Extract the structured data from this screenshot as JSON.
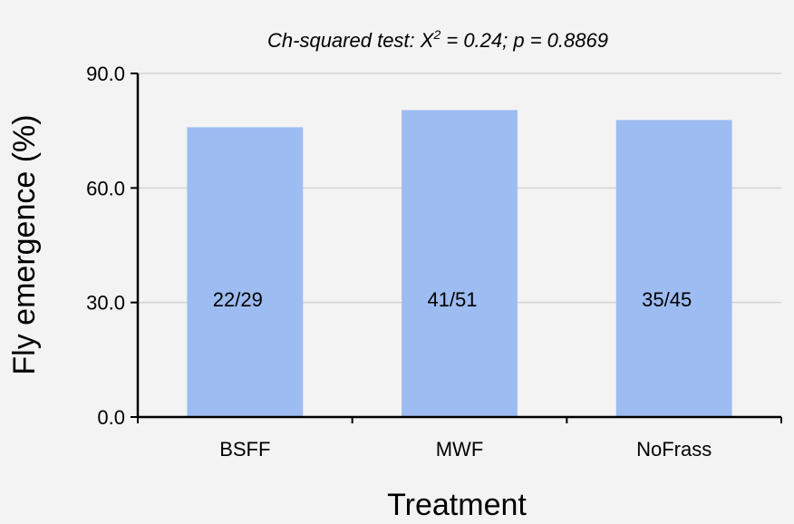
{
  "chart_data": {
    "type": "bar",
    "title_prefix": "Ch-squared test: X",
    "title_superscript": "2",
    "title_suffix": " = 0.24; p = 0.8869",
    "xlabel": "Treatment",
    "ylabel": "Fly emergence (%)",
    "ylim": [
      0,
      90
    ],
    "yticks": [
      0,
      30,
      60,
      90
    ],
    "ytick_labels": [
      "0.0",
      "30.0",
      "60.0",
      "90.0"
    ],
    "grid": true,
    "categories": [
      "BSFF",
      "MWF",
      "NoFrass"
    ],
    "values": [
      75.9,
      80.4,
      77.8
    ],
    "data_labels": [
      "22/29",
      "41/51",
      "35/45"
    ],
    "bar_color": "#9dbcf2",
    "grid_color": "#d3d3d3",
    "axis_color": "#000000"
  }
}
